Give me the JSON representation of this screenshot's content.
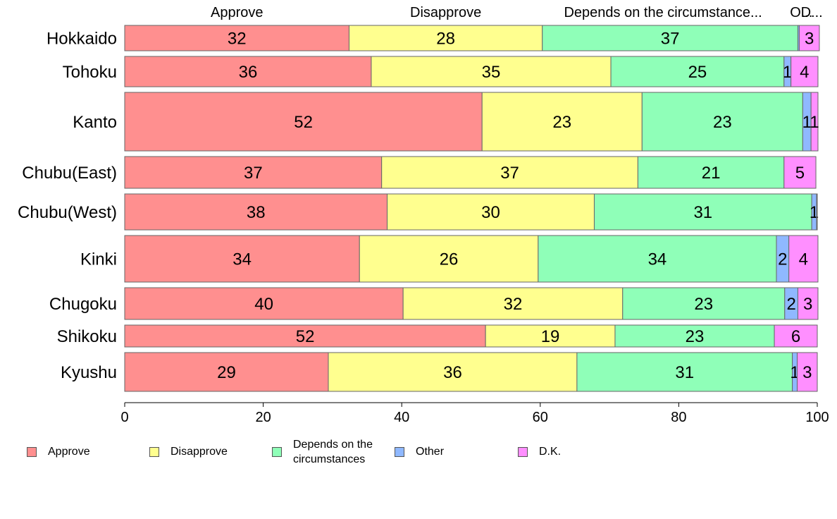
{
  "chart_data": {
    "type": "bar",
    "orientation": "horizontal",
    "stacked": true,
    "categories": [
      "Hokkaido",
      "Tohoku",
      "Kanto",
      "Chubu(East)",
      "Chubu(West)",
      "Kinki",
      "Chugoku",
      "Shikoku",
      "Kyushu"
    ],
    "series": [
      {
        "name": "Approve",
        "color": "#ff8f8f",
        "values": [
          32.4,
          35.6,
          51.6,
          37.1,
          37.9,
          33.9,
          40.2,
          52.1,
          29.4
        ]
      },
      {
        "name": "Disapprove",
        "color": "#ffff8f",
        "values": [
          27.9,
          34.6,
          23.1,
          37.0,
          29.9,
          25.8,
          31.7,
          18.7,
          35.9
        ]
      },
      {
        "name": "Depends on the circumstances",
        "color": "#8fffb8",
        "values": [
          36.9,
          25.0,
          23.2,
          21.1,
          31.4,
          34.4,
          23.4,
          23.0,
          31.1
        ]
      },
      {
        "name": "Other",
        "color": "#8fb8ff",
        "values": [
          0.2,
          1.0,
          1.2,
          0.0,
          0.7,
          1.8,
          1.9,
          0.0,
          0.7
        ]
      },
      {
        "name": "D.K.",
        "color": "#ff8fff",
        "values": [
          2.9,
          3.9,
          1.0,
          4.6,
          0.1,
          4.2,
          2.9,
          6.2,
          2.9
        ]
      }
    ],
    "labels": [
      [
        "32",
        "28",
        "37",
        "",
        "3"
      ],
      [
        "36",
        "35",
        "25",
        "1",
        "4"
      ],
      [
        "52",
        "23",
        "23",
        "1",
        "1"
      ],
      [
        "37",
        "37",
        "21",
        "",
        "5"
      ],
      [
        "38",
        "30",
        "31",
        "1",
        ""
      ],
      [
        "34",
        "26",
        "34",
        "2",
        "4"
      ],
      [
        "40",
        "32",
        "23",
        "2",
        "3"
      ],
      [
        "52",
        "19",
        "23",
        "",
        "6"
      ],
      [
        "29",
        "36",
        "31",
        "1",
        "3"
      ]
    ],
    "row_weights": [
      36,
      43,
      83,
      45,
      51,
      66,
      45,
      31,
      55
    ],
    "top_labels": [
      "Approve",
      "Disapprove",
      "Depends on the circumstance...",
      "O...",
      "D..."
    ],
    "xlim": [
      0,
      100
    ],
    "xticks": [
      0,
      20,
      40,
      60,
      80,
      100
    ],
    "legend": {
      "placement": "bottom",
      "items": [
        {
          "label": "Approve",
          "color": "#ff8f8f"
        },
        {
          "label": "Disapprove",
          "color": "#ffff8f"
        },
        {
          "label": "Depends on the circumstances",
          "color": "#8fffb8"
        },
        {
          "label": "Other",
          "color": "#8fb8ff"
        },
        {
          "label": "D.K.",
          "color": "#ff8fff"
        }
      ]
    },
    "title": "",
    "xlabel": "",
    "ylabel": ""
  }
}
